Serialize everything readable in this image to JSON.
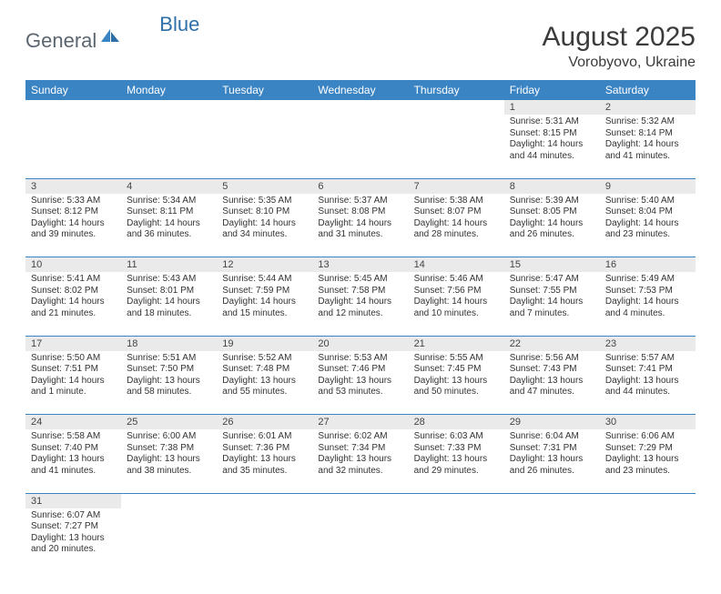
{
  "logo": {
    "part1": "General",
    "part2": "Blue"
  },
  "title": "August 2025",
  "location": "Vorobyovo, Ukraine",
  "colors": {
    "header_bg": "#3b84c4",
    "header_text": "#ffffff",
    "daynum_bg": "#eaeaea",
    "row_border": "#3b84c4",
    "logo_gray": "#5c6670",
    "logo_blue": "#2f6fa8"
  },
  "weekdays": [
    "Sunday",
    "Monday",
    "Tuesday",
    "Wednesday",
    "Thursday",
    "Friday",
    "Saturday"
  ],
  "days": {
    "1": {
      "sunrise": "Sunrise: 5:31 AM",
      "sunset": "Sunset: 8:15 PM",
      "daylight1": "Daylight: 14 hours",
      "daylight2": "and 44 minutes."
    },
    "2": {
      "sunrise": "Sunrise: 5:32 AM",
      "sunset": "Sunset: 8:14 PM",
      "daylight1": "Daylight: 14 hours",
      "daylight2": "and 41 minutes."
    },
    "3": {
      "sunrise": "Sunrise: 5:33 AM",
      "sunset": "Sunset: 8:12 PM",
      "daylight1": "Daylight: 14 hours",
      "daylight2": "and 39 minutes."
    },
    "4": {
      "sunrise": "Sunrise: 5:34 AM",
      "sunset": "Sunset: 8:11 PM",
      "daylight1": "Daylight: 14 hours",
      "daylight2": "and 36 minutes."
    },
    "5": {
      "sunrise": "Sunrise: 5:35 AM",
      "sunset": "Sunset: 8:10 PM",
      "daylight1": "Daylight: 14 hours",
      "daylight2": "and 34 minutes."
    },
    "6": {
      "sunrise": "Sunrise: 5:37 AM",
      "sunset": "Sunset: 8:08 PM",
      "daylight1": "Daylight: 14 hours",
      "daylight2": "and 31 minutes."
    },
    "7": {
      "sunrise": "Sunrise: 5:38 AM",
      "sunset": "Sunset: 8:07 PM",
      "daylight1": "Daylight: 14 hours",
      "daylight2": "and 28 minutes."
    },
    "8": {
      "sunrise": "Sunrise: 5:39 AM",
      "sunset": "Sunset: 8:05 PM",
      "daylight1": "Daylight: 14 hours",
      "daylight2": "and 26 minutes."
    },
    "9": {
      "sunrise": "Sunrise: 5:40 AM",
      "sunset": "Sunset: 8:04 PM",
      "daylight1": "Daylight: 14 hours",
      "daylight2": "and 23 minutes."
    },
    "10": {
      "sunrise": "Sunrise: 5:41 AM",
      "sunset": "Sunset: 8:02 PM",
      "daylight1": "Daylight: 14 hours",
      "daylight2": "and 21 minutes."
    },
    "11": {
      "sunrise": "Sunrise: 5:43 AM",
      "sunset": "Sunset: 8:01 PM",
      "daylight1": "Daylight: 14 hours",
      "daylight2": "and 18 minutes."
    },
    "12": {
      "sunrise": "Sunrise: 5:44 AM",
      "sunset": "Sunset: 7:59 PM",
      "daylight1": "Daylight: 14 hours",
      "daylight2": "and 15 minutes."
    },
    "13": {
      "sunrise": "Sunrise: 5:45 AM",
      "sunset": "Sunset: 7:58 PM",
      "daylight1": "Daylight: 14 hours",
      "daylight2": "and 12 minutes."
    },
    "14": {
      "sunrise": "Sunrise: 5:46 AM",
      "sunset": "Sunset: 7:56 PM",
      "daylight1": "Daylight: 14 hours",
      "daylight2": "and 10 minutes."
    },
    "15": {
      "sunrise": "Sunrise: 5:47 AM",
      "sunset": "Sunset: 7:55 PM",
      "daylight1": "Daylight: 14 hours",
      "daylight2": "and 7 minutes."
    },
    "16": {
      "sunrise": "Sunrise: 5:49 AM",
      "sunset": "Sunset: 7:53 PM",
      "daylight1": "Daylight: 14 hours",
      "daylight2": "and 4 minutes."
    },
    "17": {
      "sunrise": "Sunrise: 5:50 AM",
      "sunset": "Sunset: 7:51 PM",
      "daylight1": "Daylight: 14 hours",
      "daylight2": "and 1 minute."
    },
    "18": {
      "sunrise": "Sunrise: 5:51 AM",
      "sunset": "Sunset: 7:50 PM",
      "daylight1": "Daylight: 13 hours",
      "daylight2": "and 58 minutes."
    },
    "19": {
      "sunrise": "Sunrise: 5:52 AM",
      "sunset": "Sunset: 7:48 PM",
      "daylight1": "Daylight: 13 hours",
      "daylight2": "and 55 minutes."
    },
    "20": {
      "sunrise": "Sunrise: 5:53 AM",
      "sunset": "Sunset: 7:46 PM",
      "daylight1": "Daylight: 13 hours",
      "daylight2": "and 53 minutes."
    },
    "21": {
      "sunrise": "Sunrise: 5:55 AM",
      "sunset": "Sunset: 7:45 PM",
      "daylight1": "Daylight: 13 hours",
      "daylight2": "and 50 minutes."
    },
    "22": {
      "sunrise": "Sunrise: 5:56 AM",
      "sunset": "Sunset: 7:43 PM",
      "daylight1": "Daylight: 13 hours",
      "daylight2": "and 47 minutes."
    },
    "23": {
      "sunrise": "Sunrise: 5:57 AM",
      "sunset": "Sunset: 7:41 PM",
      "daylight1": "Daylight: 13 hours",
      "daylight2": "and 44 minutes."
    },
    "24": {
      "sunrise": "Sunrise: 5:58 AM",
      "sunset": "Sunset: 7:40 PM",
      "daylight1": "Daylight: 13 hours",
      "daylight2": "and 41 minutes."
    },
    "25": {
      "sunrise": "Sunrise: 6:00 AM",
      "sunset": "Sunset: 7:38 PM",
      "daylight1": "Daylight: 13 hours",
      "daylight2": "and 38 minutes."
    },
    "26": {
      "sunrise": "Sunrise: 6:01 AM",
      "sunset": "Sunset: 7:36 PM",
      "daylight1": "Daylight: 13 hours",
      "daylight2": "and 35 minutes."
    },
    "27": {
      "sunrise": "Sunrise: 6:02 AM",
      "sunset": "Sunset: 7:34 PM",
      "daylight1": "Daylight: 13 hours",
      "daylight2": "and 32 minutes."
    },
    "28": {
      "sunrise": "Sunrise: 6:03 AM",
      "sunset": "Sunset: 7:33 PM",
      "daylight1": "Daylight: 13 hours",
      "daylight2": "and 29 minutes."
    },
    "29": {
      "sunrise": "Sunrise: 6:04 AM",
      "sunset": "Sunset: 7:31 PM",
      "daylight1": "Daylight: 13 hours",
      "daylight2": "and 26 minutes."
    },
    "30": {
      "sunrise": "Sunrise: 6:06 AM",
      "sunset": "Sunset: 7:29 PM",
      "daylight1": "Daylight: 13 hours",
      "daylight2": "and 23 minutes."
    },
    "31": {
      "sunrise": "Sunrise: 6:07 AM",
      "sunset": "Sunset: 7:27 PM",
      "daylight1": "Daylight: 13 hours",
      "daylight2": "and 20 minutes."
    }
  },
  "weeks": [
    [
      null,
      null,
      null,
      null,
      null,
      "1",
      "2"
    ],
    [
      "3",
      "4",
      "5",
      "6",
      "7",
      "8",
      "9"
    ],
    [
      "10",
      "11",
      "12",
      "13",
      "14",
      "15",
      "16"
    ],
    [
      "17",
      "18",
      "19",
      "20",
      "21",
      "22",
      "23"
    ],
    [
      "24",
      "25",
      "26",
      "27",
      "28",
      "29",
      "30"
    ],
    [
      "31",
      null,
      null,
      null,
      null,
      null,
      null
    ]
  ]
}
